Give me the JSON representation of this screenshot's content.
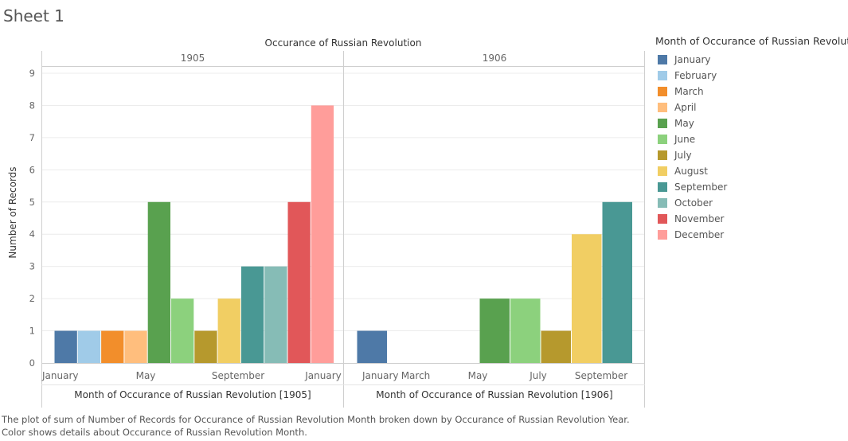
{
  "sheet_title": "Sheet 1",
  "caption": "The plot of sum of Number of Records for Occurance of Russian Revolution Month broken down by Occurance of Russian Revolution Year.  Color shows details about Occurance of Russian Revolution Month.",
  "legend": {
    "title": "Month of Occurance of Russian Revolution",
    "items": [
      {
        "label": "January",
        "color": "#4e79a7"
      },
      {
        "label": "February",
        "color": "#a0cbe8"
      },
      {
        "label": "March",
        "color": "#f28e2b"
      },
      {
        "label": "April",
        "color": "#ffbe7d"
      },
      {
        "label": "May",
        "color": "#59a14f"
      },
      {
        "label": "June",
        "color": "#8cd17d"
      },
      {
        "label": "July",
        "color": "#b6992d"
      },
      {
        "label": "August",
        "color": "#f1ce63"
      },
      {
        "label": "September",
        "color": "#499894"
      },
      {
        "label": "October",
        "color": "#86bcb6"
      },
      {
        "label": "November",
        "color": "#e15759"
      },
      {
        "label": "December",
        "color": "#ff9d9a"
      }
    ]
  },
  "chart_data": {
    "type": "bar",
    "title": "Occurance of Russian Revolution",
    "ylabel": "Number of Records",
    "ylim": [
      0,
      9
    ],
    "yticks": [
      0,
      1,
      2,
      3,
      4,
      5,
      6,
      7,
      8,
      9
    ],
    "grid": true,
    "legend_position": "right",
    "panels": [
      {
        "header": "1905",
        "xlabel": "Month of Occurance of Russian Revolution [1905]",
        "x_ticks": [
          "January",
          "May",
          "September",
          "January"
        ],
        "bars": [
          {
            "month": "January",
            "value": 1
          },
          {
            "month": "February",
            "value": 1
          },
          {
            "month": "March",
            "value": 1
          },
          {
            "month": "April",
            "value": 1
          },
          {
            "month": "May",
            "value": 5
          },
          {
            "month": "June",
            "value": 2
          },
          {
            "month": "July",
            "value": 1
          },
          {
            "month": "August",
            "value": 2
          },
          {
            "month": "September",
            "value": 3
          },
          {
            "month": "October",
            "value": 3
          },
          {
            "month": "November",
            "value": 5
          },
          {
            "month": "December",
            "value": 8
          }
        ]
      },
      {
        "header": "1906",
        "xlabel": "Month of Occurance of Russian Revolution [1906]",
        "x_ticks": [
          "January",
          "March",
          "May",
          "July",
          "September"
        ],
        "bars": [
          {
            "month": "January",
            "value": 1
          },
          {
            "month": "May",
            "value": 2
          },
          {
            "month": "June",
            "value": 2
          },
          {
            "month": "July",
            "value": 1
          },
          {
            "month": "August",
            "value": 4
          },
          {
            "month": "September",
            "value": 5
          }
        ]
      }
    ]
  }
}
